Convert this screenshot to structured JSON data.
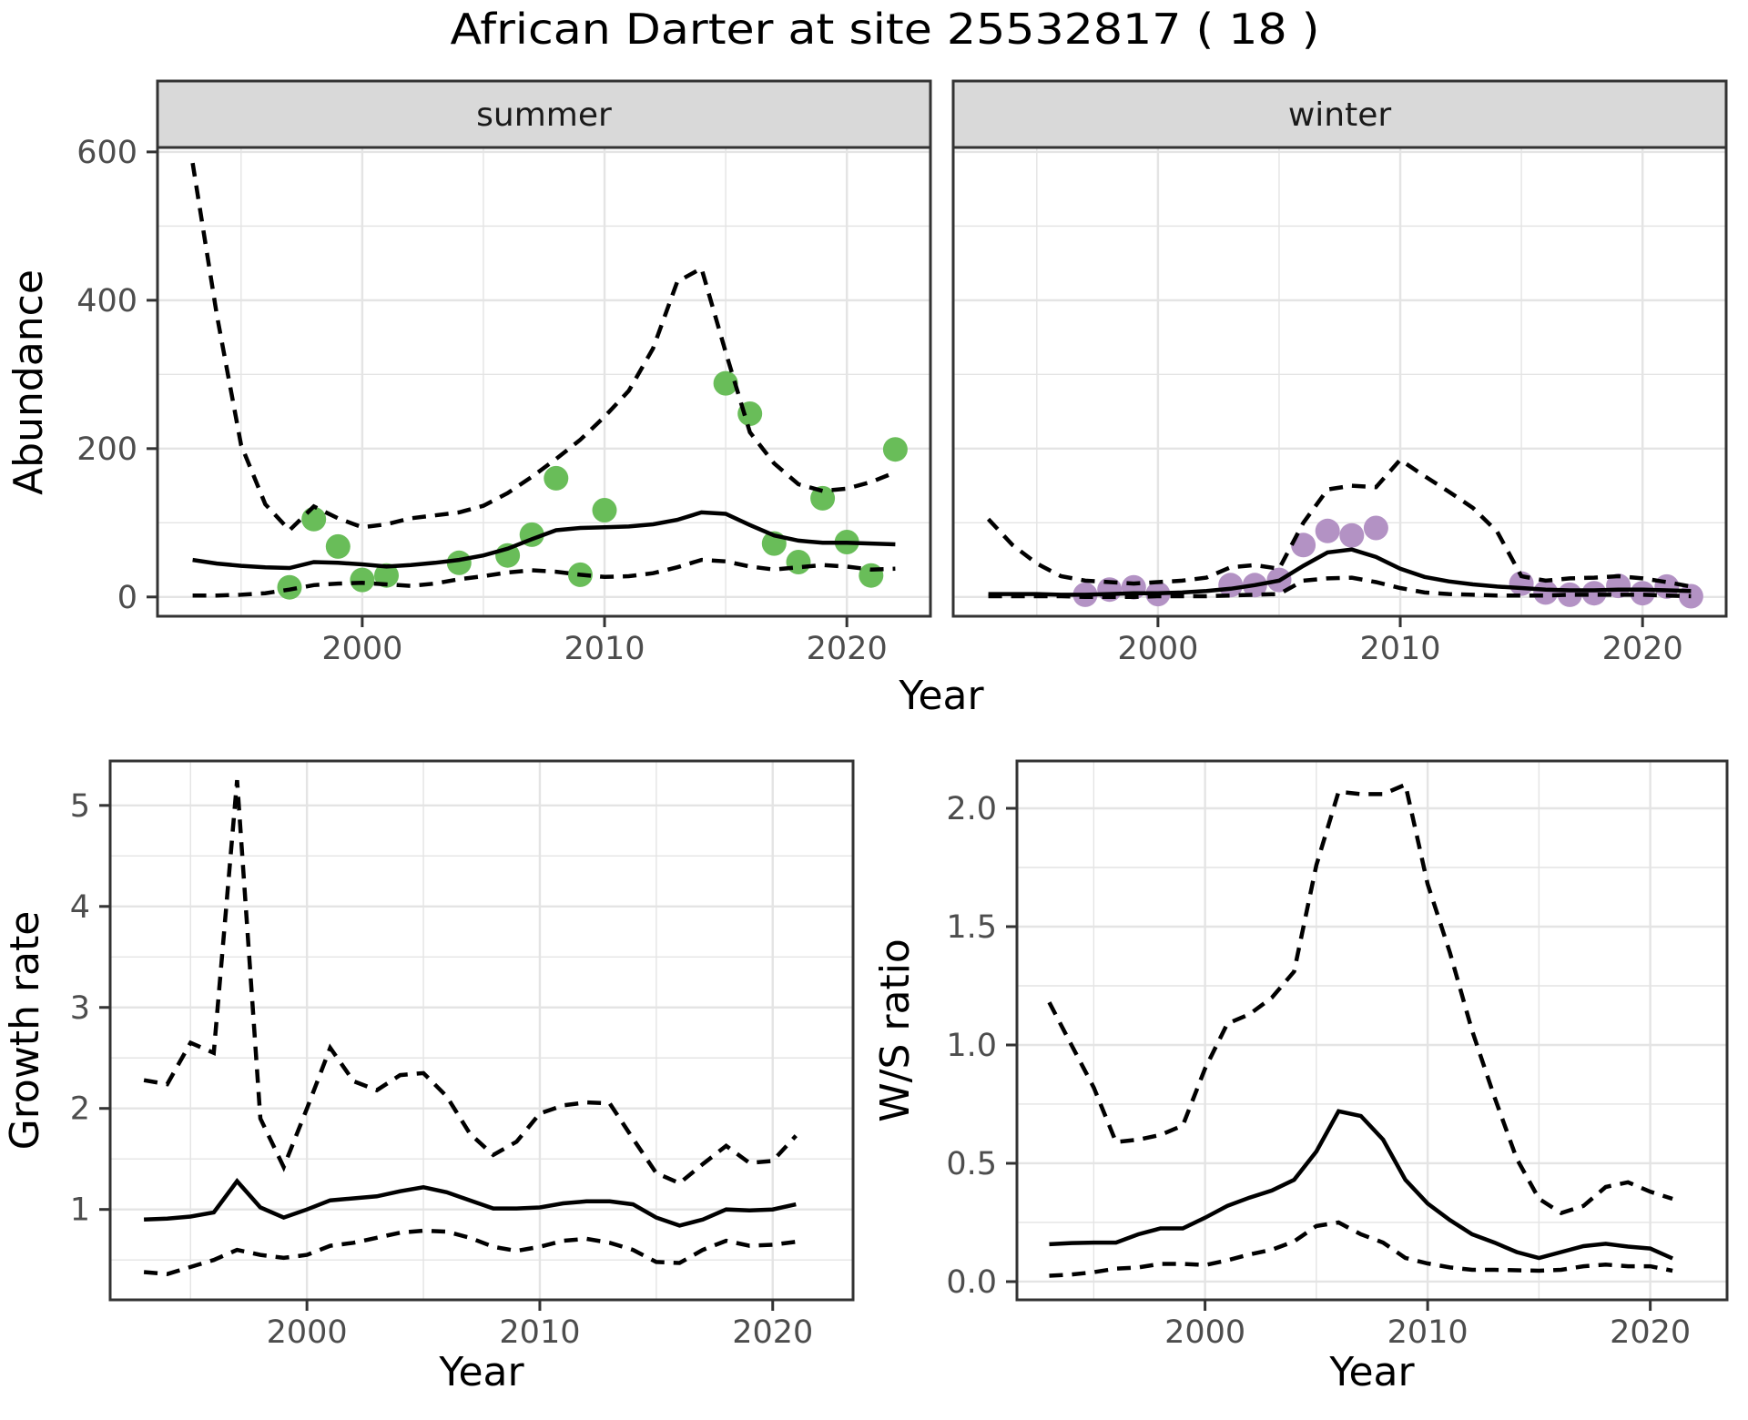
{
  "title": "African Darter at site 25532817 ( 18 )",
  "chart_data": {
    "type": "line",
    "description": "Four-panel population trend figure: faceted abundance (summer/winter) with observed points, model fit (solid) and CI (dashed); growth rate panel; winter/summer ratio panel.",
    "style": {
      "fit_color": "#000000",
      "ci_color": "#000000",
      "grid_color": "#e4e4e4",
      "strip_bg": "#d9d9d9",
      "border_color": "#333333",
      "tick_label_color": "#4d4d4d",
      "summer_point_color": "#69bd59",
      "winter_point_color": "#b392c4"
    },
    "top_row": {
      "ylabel": "Abundance",
      "xlabel": "Year",
      "x_ticks": [
        2000,
        2010,
        2020
      ],
      "x_minor": [
        1995,
        2005,
        2015
      ],
      "y_ticks": [
        0,
        200,
        400,
        600
      ],
      "y_tick_labels": [
        "0",
        "200",
        "400",
        "600"
      ],
      "y_minor": [
        100,
        300,
        500
      ],
      "xlim": [
        1991.55,
        2023.45
      ],
      "ylim": [
        -26,
        606
      ],
      "facets": [
        {
          "label": "summer",
          "panel": "summer",
          "points": {
            "years": [
              1997,
              1998,
              1999,
              2000,
              2001,
              2004,
              2006,
              2007,
              2008,
              2009,
              2010,
              2015,
              2016,
              2017,
              2018,
              2019,
              2020,
              2021,
              2022
            ],
            "values": [
              13,
              105,
              68,
              23,
              29,
              46,
              56,
              84,
              160,
              30,
              117,
              288,
              247,
              72,
              47,
              133,
              74,
              29,
              199
            ]
          },
          "fit": {
            "start": 1993,
            "values": [
              50,
              45,
              42,
              40,
              39,
              47,
              46,
              44,
              41,
              43,
              46,
              50,
              56,
              65,
              78,
              90,
              93,
              94,
              95,
              98,
              104,
              114,
              112,
              97,
              83,
              76,
              73,
              73,
              72,
              71
            ]
          },
          "hi": {
            "start": 1993,
            "values": [
              585,
              380,
              205,
              125,
              90,
              122,
              106,
              94,
              98,
              106,
              110,
              114,
              123,
              140,
              162,
              186,
              212,
              243,
              278,
              335,
              425,
              443,
              330,
              222,
              180,
              152,
              143,
              146,
              155,
              168
            ]
          },
          "lo": {
            "start": 1993,
            "values": [
              2,
              2,
              3,
              5,
              10,
              16,
              18,
              19,
              17,
              15,
              18,
              24,
              28,
              33,
              36,
              34,
              30,
              27,
              28,
              32,
              40,
              50,
              48,
              41,
              37,
              40,
              43,
              41,
              37,
              38
            ]
          }
        },
        {
          "label": "winter",
          "panel": "winter",
          "points": {
            "years": [
              1997,
              1998,
              1999,
              2000,
              2003,
              2004,
              2005,
              2006,
              2007,
              2008,
              2009,
              2015,
              2016,
              2017,
              2018,
              2019,
              2020,
              2021,
              2022
            ],
            "values": [
              3,
              10,
              13,
              4,
              16,
              16,
              23,
              70,
              89,
              83,
              93,
              18,
              6,
              3,
              5,
              15,
              5,
              14,
              1
            ]
          },
          "fit": {
            "start": 1993,
            "values": [
              4,
              4,
              4,
              3,
              3,
              4,
              5,
              5,
              6,
              8,
              11,
              16,
              22,
              42,
              60,
              64,
              54,
              38,
              27,
              21,
              17,
              14,
              12,
              10,
              9,
              9,
              10,
              10,
              9,
              8
            ]
          },
          "hi": {
            "start": 1993,
            "values": [
              105,
              70,
              45,
              28,
              22,
              20,
              18,
              20,
              22,
              26,
              40,
              43,
              38,
              100,
              145,
              150,
              148,
              185,
              163,
              142,
              120,
              88,
              28,
              22,
              25,
              26,
              28,
              25,
              20,
              14
            ]
          },
          "lo": {
            "start": 1993,
            "values": [
              1,
              1,
              1,
              1,
              0,
              0,
              0,
              1,
              1,
              1,
              2,
              3,
              4,
              22,
              25,
              26,
              20,
              12,
              6,
              4,
              3,
              2,
              2,
              2,
              3,
              3,
              3,
              3,
              2,
              1
            ]
          }
        }
      ]
    },
    "growth": {
      "ylabel": "Growth rate",
      "xlabel": "Year",
      "panel": "growth",
      "x_ticks": [
        2000,
        2010,
        2020
      ],
      "x_minor": [
        1995,
        2005,
        2015
      ],
      "y_ticks": [
        1,
        2,
        3,
        4,
        5
      ],
      "y_tick_labels": [
        "1",
        "2",
        "3",
        "4",
        "5"
      ],
      "y_minor": [
        0.5,
        1.5,
        2.5,
        3.5,
        4.5
      ],
      "xlim": [
        1991.55,
        2023.45
      ],
      "ylim": [
        0.105,
        5.44
      ],
      "fit": {
        "start": 1993,
        "values": [
          0.9,
          0.91,
          0.93,
          0.97,
          1.28,
          1.02,
          0.92,
          1.0,
          1.09,
          1.11,
          1.13,
          1.18,
          1.22,
          1.17,
          1.09,
          1.01,
          1.01,
          1.02,
          1.06,
          1.08,
          1.08,
          1.05,
          0.92,
          0.84,
          0.9,
          1.0,
          0.99,
          1.0,
          1.05
        ]
      },
      "hi": {
        "start": 1993,
        "values": [
          2.28,
          2.24,
          2.65,
          2.55,
          5.25,
          1.9,
          1.42,
          2.0,
          2.6,
          2.27,
          2.18,
          2.33,
          2.35,
          2.12,
          1.75,
          1.54,
          1.67,
          1.95,
          2.03,
          2.06,
          2.05,
          1.7,
          1.36,
          1.26,
          1.45,
          1.63,
          1.46,
          1.48,
          1.73
        ]
      },
      "lo": {
        "start": 1993,
        "values": [
          0.38,
          0.36,
          0.43,
          0.5,
          0.6,
          0.55,
          0.52,
          0.55,
          0.64,
          0.67,
          0.72,
          0.77,
          0.79,
          0.78,
          0.72,
          0.63,
          0.59,
          0.63,
          0.69,
          0.71,
          0.67,
          0.6,
          0.48,
          0.47,
          0.6,
          0.69,
          0.64,
          0.65,
          0.68
        ]
      }
    },
    "ws": {
      "ylabel": "W/S ratio",
      "xlabel": "Year",
      "panel": "ws",
      "x_ticks": [
        2000,
        2010,
        2020
      ],
      "x_minor": [
        1995,
        2005,
        2015
      ],
      "y_ticks": [
        0,
        0.5,
        1,
        1.5,
        2
      ],
      "y_tick_labels": [
        "0.0",
        "0.5",
        "1.0",
        "1.5",
        "2.0"
      ],
      "y_minor": [
        0.25,
        0.75,
        1.25,
        1.75
      ],
      "xlim": [
        1991.55,
        2023.45
      ],
      "ylim": [
        -0.077,
        2.2
      ],
      "fit": {
        "start": 1993,
        "values": [
          0.158,
          0.163,
          0.165,
          0.165,
          0.2,
          0.225,
          0.225,
          0.27,
          0.32,
          0.355,
          0.385,
          0.43,
          0.55,
          0.72,
          0.7,
          0.6,
          0.43,
          0.33,
          0.26,
          0.2,
          0.165,
          0.125,
          0.1,
          0.125,
          0.15,
          0.16,
          0.148,
          0.14,
          0.098
        ]
      },
      "hi": {
        "start": 1993,
        "values": [
          1.18,
          1.0,
          0.82,
          0.59,
          0.6,
          0.62,
          0.66,
          0.9,
          1.09,
          1.13,
          1.2,
          1.31,
          1.76,
          2.07,
          2.06,
          2.06,
          2.1,
          1.68,
          1.39,
          1.06,
          0.78,
          0.52,
          0.35,
          0.29,
          0.32,
          0.4,
          0.42,
          0.38,
          0.35
        ]
      },
      "lo": {
        "start": 1993,
        "values": [
          0.025,
          0.03,
          0.04,
          0.055,
          0.06,
          0.075,
          0.075,
          0.07,
          0.09,
          0.115,
          0.135,
          0.17,
          0.235,
          0.25,
          0.2,
          0.165,
          0.1,
          0.077,
          0.06,
          0.05,
          0.05,
          0.048,
          0.046,
          0.05,
          0.065,
          0.072,
          0.065,
          0.065,
          0.046
        ]
      }
    }
  }
}
